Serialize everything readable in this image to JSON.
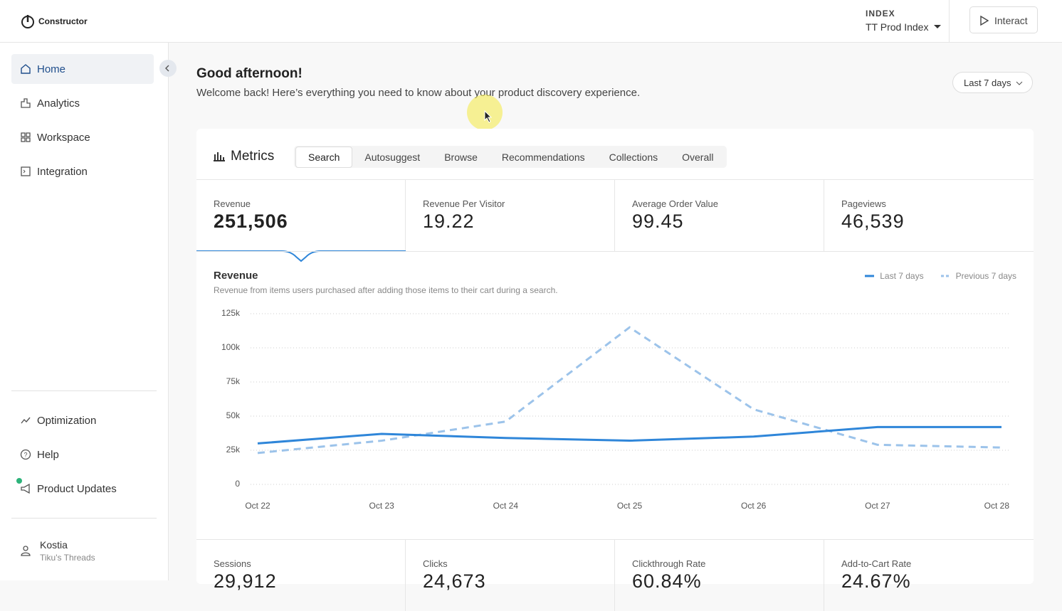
{
  "header": {
    "logo": "Constructor",
    "index_label": "INDEX",
    "index_value": "TT Prod Index",
    "interact": "Interact"
  },
  "sidebar": {
    "nav": [
      "Home",
      "Analytics",
      "Workspace",
      "Integration"
    ],
    "bottom": [
      "Optimization",
      "Help",
      "Product Updates"
    ],
    "user": {
      "name": "Kostia",
      "org": "Tiku's Threads"
    }
  },
  "main": {
    "greeting": "Good afternoon!",
    "welcome": "Welcome back! Here’s everything you need to know about your product discovery experience.",
    "range": "Last 7 days",
    "metrics_title": "Metrics",
    "tabs": [
      "Search",
      "Autosuggest",
      "Browse",
      "Recommendations",
      "Collections",
      "Overall"
    ],
    "kpis": [
      {
        "label": "Revenue",
        "value": "251,506"
      },
      {
        "label": "Revenue Per Visitor",
        "value": "19.22"
      },
      {
        "label": "Average Order Value",
        "value": "99.45"
      },
      {
        "label": "Pageviews",
        "value": "46,539"
      }
    ],
    "kpis_bottom": [
      {
        "label": "Sessions",
        "value": "29,912"
      },
      {
        "label": "Clicks",
        "value": "24,673"
      },
      {
        "label": "Clickthrough Rate",
        "value": "60.84%"
      },
      {
        "label": "Add-to-Cart Rate",
        "value": "24.67%"
      }
    ]
  },
  "chart_data": {
    "type": "line",
    "title": "Revenue",
    "subtitle": "Revenue from items users purchased after adding those items to their cart during a search.",
    "categories": [
      "Oct 22",
      "Oct 23",
      "Oct 24",
      "Oct 25",
      "Oct 26",
      "Oct 27",
      "Oct 28"
    ],
    "ylim": [
      0,
      125000
    ],
    "yticks": [
      0,
      {
        "value": 25000,
        "label": "25k"
      },
      {
        "value": 50000,
        "label": "50k"
      },
      {
        "value": 75000,
        "label": "75k"
      },
      {
        "value": 100000,
        "label": "100k"
      },
      {
        "value": 125000,
        "label": "125k"
      }
    ],
    "grid": true,
    "legend": "top-right",
    "series": [
      {
        "name": "Last 7 days",
        "color": "#2f86d9",
        "dashed": false,
        "values": [
          30000,
          37000,
          34000,
          32000,
          35000,
          42000,
          42000
        ]
      },
      {
        "name": "Previous 7 days",
        "color": "#9cc3ea",
        "dashed": true,
        "values": [
          23000,
          32000,
          46000,
          115000,
          55000,
          29000,
          27000
        ]
      }
    ]
  }
}
